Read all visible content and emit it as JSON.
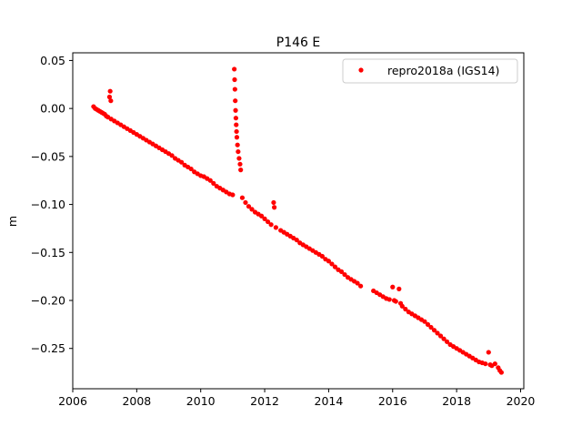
{
  "chart_data": {
    "type": "scatter",
    "title": "P146 E",
    "xlabel": "",
    "ylabel": "m",
    "xlim": [
      2006.0,
      2020.1
    ],
    "ylim": [
      -0.292,
      0.058
    ],
    "xticks": [
      2006,
      2008,
      2010,
      2012,
      2014,
      2016,
      2018,
      2020
    ],
    "xtick_labels": [
      "2006",
      "2008",
      "2010",
      "2012",
      "2014",
      "2016",
      "2018",
      "2020"
    ],
    "yticks": [
      0.05,
      0.0,
      -0.05,
      -0.1,
      -0.15,
      -0.2,
      -0.25
    ],
    "ytick_labels": [
      "0.05",
      "0.00",
      "−0.05",
      "−0.10",
      "−0.15",
      "−0.20",
      "−0.25"
    ],
    "grid": false,
    "legend_position": "top-right",
    "series": [
      {
        "name": "repro2018a (IGS14)",
        "color": "#ff0000",
        "marker": "circle",
        "points": [
          [
            2006.65,
            0.002
          ],
          [
            2006.7,
            0.0
          ],
          [
            2006.75,
            -0.001
          ],
          [
            2006.8,
            -0.002
          ],
          [
            2006.85,
            -0.003
          ],
          [
            2006.9,
            -0.004
          ],
          [
            2006.95,
            -0.005
          ],
          [
            2007.0,
            -0.006
          ],
          [
            2007.05,
            -0.008
          ],
          [
            2007.1,
            -0.009
          ],
          [
            2007.15,
            0.012
          ],
          [
            2007.17,
            0.018
          ],
          [
            2007.19,
            0.008
          ],
          [
            2007.2,
            -0.011
          ],
          [
            2007.3,
            -0.013
          ],
          [
            2007.4,
            -0.015
          ],
          [
            2007.5,
            -0.017
          ],
          [
            2007.6,
            -0.019
          ],
          [
            2007.7,
            -0.021
          ],
          [
            2007.8,
            -0.023
          ],
          [
            2007.9,
            -0.025
          ],
          [
            2008.0,
            -0.027
          ],
          [
            2008.1,
            -0.029
          ],
          [
            2008.2,
            -0.031
          ],
          [
            2008.3,
            -0.033
          ],
          [
            2008.4,
            -0.035
          ],
          [
            2008.5,
            -0.037
          ],
          [
            2008.6,
            -0.039
          ],
          [
            2008.7,
            -0.041
          ],
          [
            2008.8,
            -0.043
          ],
          [
            2008.9,
            -0.045
          ],
          [
            2009.0,
            -0.047
          ],
          [
            2009.1,
            -0.049
          ],
          [
            2009.2,
            -0.052
          ],
          [
            2009.3,
            -0.054
          ],
          [
            2009.4,
            -0.056
          ],
          [
            2009.5,
            -0.059
          ],
          [
            2009.6,
            -0.061
          ],
          [
            2009.7,
            -0.063
          ],
          [
            2009.8,
            -0.066
          ],
          [
            2009.9,
            -0.068
          ],
          [
            2010.0,
            -0.07
          ],
          [
            2010.1,
            -0.071
          ],
          [
            2010.2,
            -0.073
          ],
          [
            2010.3,
            -0.075
          ],
          [
            2010.4,
            -0.078
          ],
          [
            2010.5,
            -0.081
          ],
          [
            2010.6,
            -0.083
          ],
          [
            2010.7,
            -0.085
          ],
          [
            2010.8,
            -0.087
          ],
          [
            2010.9,
            -0.089
          ],
          [
            2011.0,
            -0.09
          ],
          [
            2011.05,
            0.041
          ],
          [
            2011.06,
            0.03
          ],
          [
            2011.07,
            0.02
          ],
          [
            2011.08,
            0.008
          ],
          [
            2011.09,
            -0.002
          ],
          [
            2011.1,
            -0.01
          ],
          [
            2011.11,
            -0.017
          ],
          [
            2011.12,
            -0.024
          ],
          [
            2011.13,
            -0.03
          ],
          [
            2011.15,
            -0.038
          ],
          [
            2011.17,
            -0.045
          ],
          [
            2011.2,
            -0.052
          ],
          [
            2011.23,
            -0.058
          ],
          [
            2011.25,
            -0.064
          ],
          [
            2011.3,
            -0.093
          ],
          [
            2011.4,
            -0.098
          ],
          [
            2011.5,
            -0.102
          ],
          [
            2011.6,
            -0.105
          ],
          [
            2011.7,
            -0.108
          ],
          [
            2011.8,
            -0.11
          ],
          [
            2011.9,
            -0.112
          ],
          [
            2012.0,
            -0.115
          ],
          [
            2012.1,
            -0.118
          ],
          [
            2012.2,
            -0.121
          ],
          [
            2012.28,
            -0.098
          ],
          [
            2012.3,
            -0.103
          ],
          [
            2012.35,
            -0.124
          ],
          [
            2012.5,
            -0.127
          ],
          [
            2012.6,
            -0.129
          ],
          [
            2012.7,
            -0.131
          ],
          [
            2012.8,
            -0.133
          ],
          [
            2012.9,
            -0.135
          ],
          [
            2013.0,
            -0.137
          ],
          [
            2013.1,
            -0.14
          ],
          [
            2013.2,
            -0.142
          ],
          [
            2013.3,
            -0.144
          ],
          [
            2013.4,
            -0.146
          ],
          [
            2013.5,
            -0.148
          ],
          [
            2013.6,
            -0.15
          ],
          [
            2013.7,
            -0.152
          ],
          [
            2013.8,
            -0.154
          ],
          [
            2013.9,
            -0.157
          ],
          [
            2014.0,
            -0.159
          ],
          [
            2014.1,
            -0.162
          ],
          [
            2014.2,
            -0.165
          ],
          [
            2014.3,
            -0.168
          ],
          [
            2014.4,
            -0.17
          ],
          [
            2014.5,
            -0.173
          ],
          [
            2014.6,
            -0.176
          ],
          [
            2014.7,
            -0.178
          ],
          [
            2014.8,
            -0.18
          ],
          [
            2014.9,
            -0.182
          ],
          [
            2015.0,
            -0.185
          ],
          [
            2015.4,
            -0.19
          ],
          [
            2015.5,
            -0.192
          ],
          [
            2015.6,
            -0.194
          ],
          [
            2015.7,
            -0.196
          ],
          [
            2015.8,
            -0.198
          ],
          [
            2015.9,
            -0.199
          ],
          [
            2016.0,
            -0.186
          ],
          [
            2016.05,
            -0.2
          ],
          [
            2016.1,
            -0.201
          ],
          [
            2016.2,
            -0.188
          ],
          [
            2016.25,
            -0.203
          ],
          [
            2016.3,
            -0.206
          ],
          [
            2016.4,
            -0.209
          ],
          [
            2016.5,
            -0.212
          ],
          [
            2016.6,
            -0.214
          ],
          [
            2016.7,
            -0.216
          ],
          [
            2016.8,
            -0.218
          ],
          [
            2016.9,
            -0.22
          ],
          [
            2017.0,
            -0.222
          ],
          [
            2017.1,
            -0.225
          ],
          [
            2017.2,
            -0.228
          ],
          [
            2017.3,
            -0.231
          ],
          [
            2017.4,
            -0.234
          ],
          [
            2017.5,
            -0.237
          ],
          [
            2017.6,
            -0.24
          ],
          [
            2017.7,
            -0.243
          ],
          [
            2017.8,
            -0.246
          ],
          [
            2017.9,
            -0.248
          ],
          [
            2018.0,
            -0.25
          ],
          [
            2018.1,
            -0.252
          ],
          [
            2018.2,
            -0.254
          ],
          [
            2018.3,
            -0.256
          ],
          [
            2018.4,
            -0.258
          ],
          [
            2018.5,
            -0.26
          ],
          [
            2018.6,
            -0.262
          ],
          [
            2018.7,
            -0.264
          ],
          [
            2018.8,
            -0.265
          ],
          [
            2018.9,
            -0.266
          ],
          [
            2019.0,
            -0.254
          ],
          [
            2019.05,
            -0.267
          ],
          [
            2019.1,
            -0.268
          ],
          [
            2019.2,
            -0.266
          ],
          [
            2019.3,
            -0.27
          ],
          [
            2019.35,
            -0.273
          ],
          [
            2019.4,
            -0.275
          ]
        ]
      }
    ]
  }
}
